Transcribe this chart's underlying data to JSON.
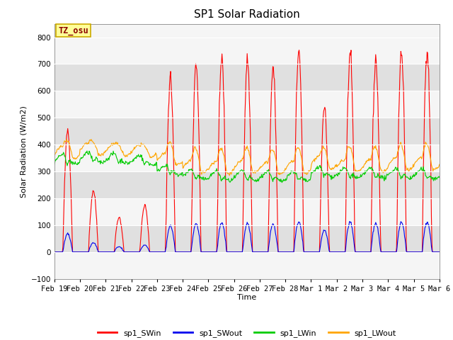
{
  "title": "SP1 Solar Radiation",
  "xlabel": "Time",
  "ylabel": "Solar Radiation (W/m2)",
  "ylim": [
    -100,
    850
  ],
  "yticks": [
    -100,
    0,
    100,
    200,
    300,
    400,
    500,
    600,
    700,
    800
  ],
  "x_tick_labels": [
    "Feb 19",
    "Feb 20",
    "Feb 21",
    "Feb 22",
    "Feb 23",
    "Feb 24",
    "Feb 25",
    "Feb 26",
    "Feb 27",
    "Feb 28",
    "Mar 1",
    "Mar 2",
    "Mar 3",
    "Mar 4",
    "Mar 5",
    "Mar 6"
  ],
  "colors": {
    "sp1_SWin": "#FF0000",
    "sp1_SWout": "#0000EE",
    "sp1_LWin": "#00CC00",
    "sp1_LWout": "#FFA500"
  },
  "legend_labels": [
    "sp1_SWin",
    "sp1_SWout",
    "sp1_LWin",
    "sp1_LWout"
  ],
  "annotation_text": "TZ_osu",
  "annotation_color": "#8B0000",
  "annotation_bg": "#FFFF99",
  "annotation_border": "#CCAA00",
  "plot_bg_light": "#F5F5F5",
  "plot_bg_dark": "#E0E0E0",
  "linewidth": 0.8,
  "title_fontsize": 11,
  "label_fontsize": 8,
  "tick_fontsize": 7.5,
  "legend_fontsize": 8
}
